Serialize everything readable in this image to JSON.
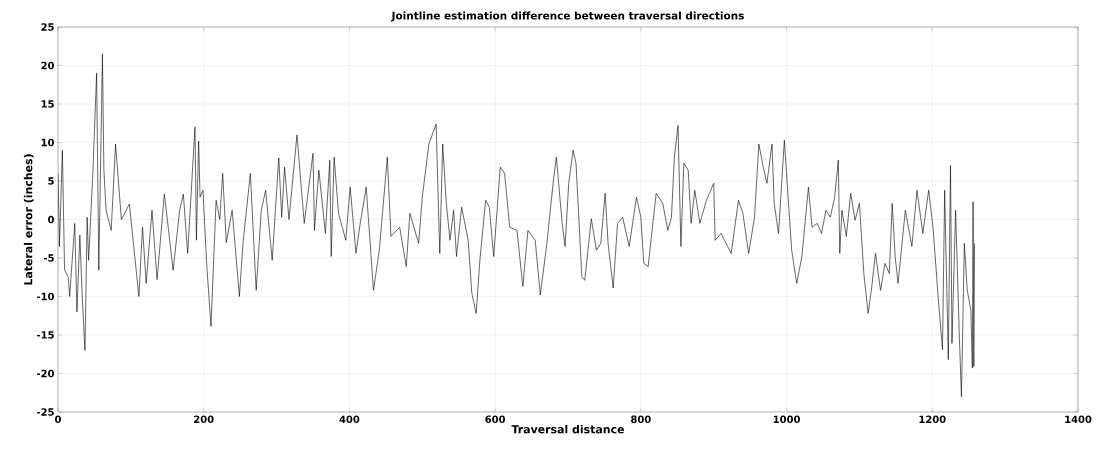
{
  "chart_data": {
    "type": "line",
    "title": "Jointline estimation difference between traversal directions",
    "xlabel": "Traversal distance",
    "ylabel": "Lateral error (inches)",
    "xlim": [
      0,
      1400
    ],
    "xticks": [
      0,
      200,
      400,
      600,
      800,
      1000,
      1200,
      1400
    ],
    "ylim": [
      -25,
      25
    ],
    "yticks": [
      -25,
      -20,
      -15,
      -10,
      -5,
      0,
      5,
      10,
      15,
      20,
      25
    ],
    "grid": true,
    "series": [
      {
        "color": "#000000",
        "x": [
          0,
          2,
          6,
          9,
          14,
          16,
          23,
          26,
          30,
          33,
          37,
          40,
          42,
          48,
          53,
          56,
          61,
          63,
          66,
          73,
          79,
          87,
          98,
          111,
          116,
          121,
          129,
          136,
          146,
          158,
          167,
          172,
          178,
          188,
          190,
          193,
          195,
          199,
          204,
          210,
          217,
          222,
          226,
          231,
          239,
          249,
          254,
          264,
          267,
          272,
          279,
          285,
          294,
          303,
          307,
          311,
          317,
          328,
          338,
          350,
          352,
          358,
          367,
          373,
          375,
          379,
          385,
          395,
          401,
          409,
          414,
          423,
          433,
          441,
          452,
          457,
          469,
          478,
          483,
          495,
          500,
          509,
          519,
          524,
          528,
          533,
          538,
          543,
          547,
          554,
          563,
          568,
          574,
          579,
          587,
          592,
          598,
          607,
          613,
          620,
          630,
          638,
          645,
          655,
          662,
          671,
          680,
          684,
          692,
          696,
          701,
          707,
          711,
          719,
          723,
          732,
          739,
          745,
          751,
          755,
          762,
          768,
          775,
          784,
          794,
          800,
          804,
          810,
          821,
          830,
          837,
          842,
          846,
          851,
          855,
          859,
          865,
          869,
          874,
          881,
          890,
          900,
          902,
          910,
          924,
          934,
          940,
          948,
          956,
          962,
          968,
          973,
          980,
          983,
          989,
          997,
          1003,
          1007,
          1014,
          1021,
          1030,
          1035,
          1042,
          1048,
          1054,
          1060,
          1066,
          1071,
          1073,
          1076,
          1082,
          1088,
          1094,
          1100,
          1106,
          1112,
          1117,
          1122,
          1129,
          1135,
          1141,
          1145,
          1149,
          1153,
          1163,
          1172,
          1179,
          1187,
          1195,
          1201,
          1208,
          1214,
          1217,
          1222,
          1225,
          1227,
          1232,
          1237,
          1240,
          1244,
          1248,
          1253,
          1255,
          1256,
          1257,
          1258
        ],
        "values": [
          6,
          -3.5,
          9,
          -6.5,
          -7.5,
          -10,
          -0.5,
          -12,
          -2,
          -9.5,
          -17,
          0.3,
          -5.3,
          6.4,
          19,
          -6.6,
          21.5,
          6.4,
          1.2,
          -1.4,
          9.8,
          0,
          2,
          -10,
          -1,
          -8.3,
          1.2,
          -7.8,
          3.3,
          -6.6,
          1.2,
          3.3,
          -4.4,
          12,
          -2.7,
          10.2,
          2.9,
          3.8,
          -5.7,
          -13.9,
          2.5,
          0,
          6,
          -3,
          1.2,
          -10,
          -3,
          6,
          0.3,
          -9.2,
          1.2,
          3.8,
          -5.3,
          8,
          0.3,
          6.8,
          0,
          11,
          -0.5,
          8.6,
          -1.4,
          6.4,
          -1.8,
          7.7,
          -4.8,
          8.1,
          0.8,
          -2.7,
          4.2,
          -4.4,
          -1,
          4.2,
          -9.2,
          -4,
          8.1,
          -2.2,
          -1,
          -6.1,
          0.8,
          -3.1,
          2.9,
          9.8,
          12.4,
          -4.4,
          9.8,
          2.1,
          -2.7,
          1.2,
          -4.8,
          1.6,
          -2.7,
          -9.6,
          -12.2,
          -5.3,
          2.5,
          1.6,
          -4.8,
          6.8,
          6,
          -1,
          -1.4,
          -8.7,
          -1.4,
          -2.7,
          -9.8,
          -3.1,
          5.1,
          8.1,
          -0.5,
          -3.5,
          4.7,
          9,
          7.3,
          -7.4,
          -7.9,
          0.1,
          -4,
          -3.1,
          3.4,
          -3.1,
          -8.9,
          -0.5,
          0.3,
          -3.5,
          2.9,
          0.3,
          -5.7,
          -6.1,
          3.4,
          2.1,
          -1.4,
          0.3,
          8.1,
          12.2,
          -3.5,
          7.3,
          6.4,
          -0.5,
          3.8,
          -0.5,
          2.5,
          4.7,
          -2.7,
          -1.8,
          -4.4,
          2.5,
          0.8,
          -4.4,
          0.3,
          9.8,
          6.8,
          4.7,
          9.8,
          2.1,
          -1.8,
          10.3,
          1.6,
          -4,
          -8.3,
          -4.8,
          4.2,
          -1,
          -0.5,
          -1.8,
          1.2,
          0.3,
          2.9,
          7.7,
          -4.4,
          1.2,
          -2.2,
          3.4,
          -0.1,
          2.1,
          -7,
          -12.2,
          -8.7,
          -4.4,
          -9.2,
          -5.7,
          -7,
          2.1,
          -4.8,
          -8.3,
          1.2,
          -3.5,
          3.8,
          -1.8,
          3.8,
          -1,
          -10,
          -16.9,
          3.8,
          -18.2,
          7,
          -16.1,
          1.2,
          -14.8,
          -23,
          -3.1,
          -9.2,
          -11.8,
          -19.3,
          2.3,
          -19.1,
          -3.1
        ]
      }
    ]
  }
}
